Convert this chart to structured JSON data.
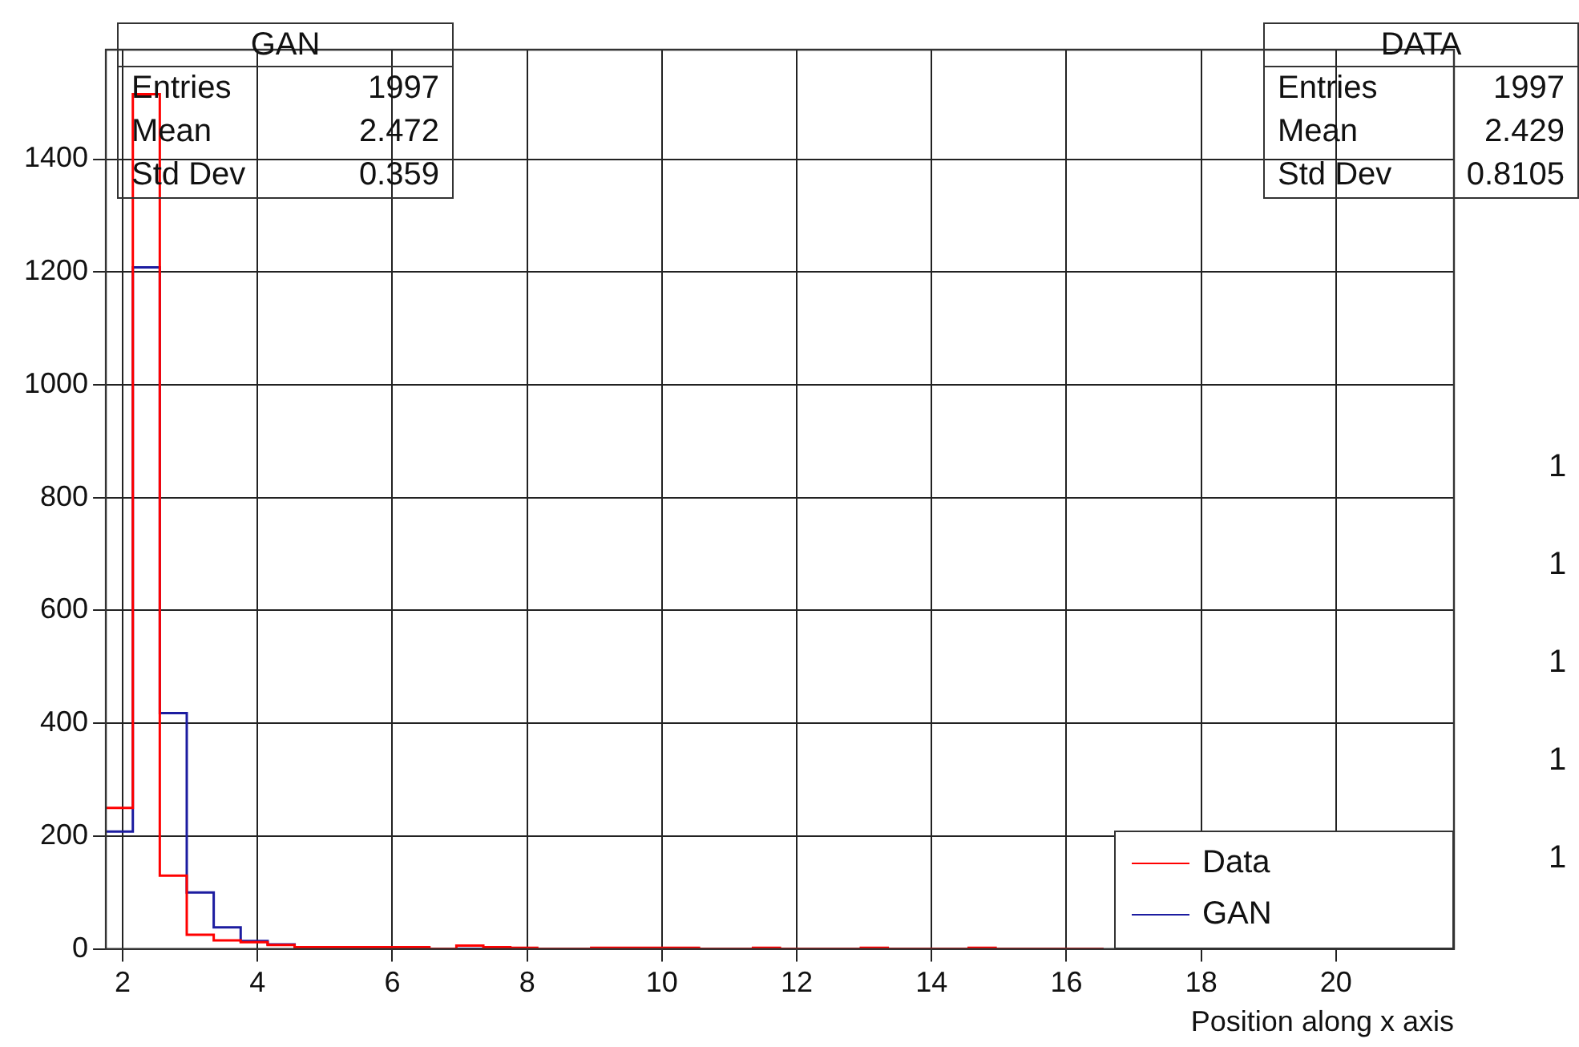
{
  "chart_data": {
    "type": "histogram",
    "xlabel": "Position along x axis",
    "bins": [
      1.75,
      2.15,
      2.55,
      2.95,
      3.35,
      3.75,
      4.15,
      4.55,
      4.95,
      5.35,
      5.75,
      6.15,
      6.55,
      6.95,
      7.35,
      7.75,
      8.15,
      8.55,
      8.95,
      9.35,
      9.75,
      10.15,
      10.55,
      10.95,
      11.35,
      11.75,
      12.15,
      12.55,
      12.95,
      13.35,
      13.75,
      14.15,
      14.55,
      14.95,
      15.35,
      15.75,
      16.15,
      16.55
    ],
    "series": [
      {
        "name": "Data",
        "color": "#ff0000",
        "values": [
          250,
          1515,
          130,
          25,
          15,
          12,
          7,
          3,
          3,
          3,
          3,
          3,
          0,
          6,
          3,
          2,
          0,
          0,
          2,
          2,
          2,
          2,
          0,
          0,
          2,
          0,
          0,
          0,
          2,
          0,
          0,
          0,
          2,
          0,
          0,
          0,
          0
        ]
      },
      {
        "name": "GAN",
        "color": "#1c1ca0",
        "values": [
          208,
          1208,
          418,
          100,
          38,
          14,
          8,
          3,
          2,
          0,
          0,
          0,
          0,
          0,
          0,
          0,
          0,
          0,
          0,
          0,
          0,
          0,
          0,
          0,
          0,
          0,
          0,
          0,
          0,
          0,
          0,
          0,
          0,
          0,
          0,
          0,
          0
        ]
      }
    ],
    "xlim": [
      1.75,
      21.75
    ],
    "xticks": [
      2,
      4,
      6,
      8,
      10,
      12,
      14,
      16,
      18,
      20
    ],
    "ylim": [
      0,
      1594
    ],
    "yticks": [
      0,
      200,
      400,
      600,
      800,
      1000,
      1200,
      1400
    ],
    "grid": true,
    "legend": "bottom right",
    "annotations": [
      "GAN\nEntries\t1997\nMean\t2.472\nStd Dev\t0.359",
      "DATA\nEntries\t1997\nMean\t2.429\nStd Dev\t0.8105",
      "1",
      "1",
      "1",
      "1",
      "1"
    ]
  }
}
